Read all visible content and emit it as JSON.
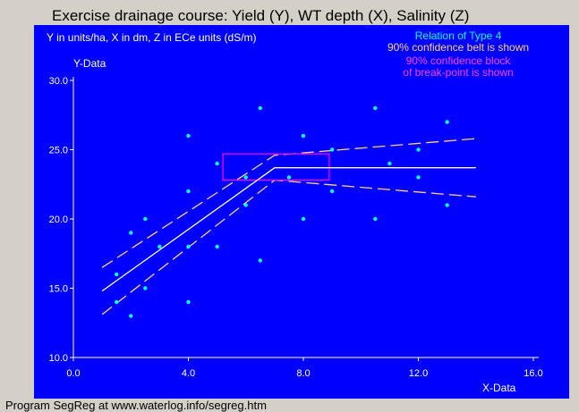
{
  "window": {
    "title": "Exercise drainage course: Yield (Y), WT depth (X), Salinity (Z)",
    "footer": "Program SegReg at www.waterlog.info/segreg.htm"
  },
  "colors": {
    "panel_background": "#0000ff",
    "points": "#00ffff",
    "regression_line": "#ffffff",
    "confidence_belt": "#ffd280",
    "confidence_block": "#ff00ff",
    "axes_text": "#ffffff",
    "relation_text": "#00ffff",
    "belt_text": "#ffd280",
    "block_text": "#ff40ff"
  },
  "chart_data": {
    "type": "scatter",
    "subtitle": "Y in units/ha, X in dm, Z in ECe units (dS/m)",
    "xlabel": "X-Data",
    "ylabel": "Y-Data",
    "xlim": [
      0,
      16
    ],
    "ylim": [
      10,
      30
    ],
    "x_ticks": [
      0,
      4,
      8,
      12,
      16
    ],
    "x_tick_labels": [
      "0.0",
      "4.0",
      "8.0",
      "12.0",
      "16.0"
    ],
    "y_ticks": [
      10,
      15,
      20,
      25,
      30
    ],
    "y_tick_labels": [
      "10.0",
      "15.0",
      "20.0",
      "25.0",
      "30.0"
    ],
    "legend": [
      "Relation of Type 4",
      "90% confidence belt is shown",
      "90% confidence block",
      "of break-point is shown"
    ],
    "points": [
      {
        "x": 1.5,
        "y": 16
      },
      {
        "x": 1.5,
        "y": 14
      },
      {
        "x": 2.0,
        "y": 19
      },
      {
        "x": 2.0,
        "y": 13
      },
      {
        "x": 2.5,
        "y": 20
      },
      {
        "x": 2.5,
        "y": 15
      },
      {
        "x": 3.0,
        "y": 18
      },
      {
        "x": 4.0,
        "y": 26
      },
      {
        "x": 4.0,
        "y": 22
      },
      {
        "x": 4.0,
        "y": 18
      },
      {
        "x": 4.0,
        "y": 14
      },
      {
        "x": 5.0,
        "y": 24
      },
      {
        "x": 5.0,
        "y": 18
      },
      {
        "x": 6.0,
        "y": 23
      },
      {
        "x": 6.0,
        "y": 21
      },
      {
        "x": 6.5,
        "y": 28
      },
      {
        "x": 6.5,
        "y": 17
      },
      {
        "x": 7.5,
        "y": 23
      },
      {
        "x": 8.0,
        "y": 26
      },
      {
        "x": 8.0,
        "y": 20
      },
      {
        "x": 9.0,
        "y": 25
      },
      {
        "x": 9.0,
        "y": 22
      },
      {
        "x": 10.5,
        "y": 28
      },
      {
        "x": 10.5,
        "y": 20
      },
      {
        "x": 11.0,
        "y": 24
      },
      {
        "x": 12.0,
        "y": 25
      },
      {
        "x": 12.0,
        "y": 23
      },
      {
        "x": 13.0,
        "y": 27
      },
      {
        "x": 13.0,
        "y": 21
      }
    ],
    "regression_line": [
      {
        "x": 1.0,
        "y": 14.8
      },
      {
        "x": 7.0,
        "y": 23.7
      },
      {
        "x": 14.0,
        "y": 23.7
      }
    ],
    "confidence_upper": [
      {
        "x": 1.0,
        "y": 16.5
      },
      {
        "x": 7.0,
        "y": 24.6
      },
      {
        "x": 14.0,
        "y": 25.8
      }
    ],
    "confidence_lower": [
      {
        "x": 1.0,
        "y": 13.1
      },
      {
        "x": 7.0,
        "y": 22.8
      },
      {
        "x": 14.0,
        "y": 21.6
      }
    ],
    "breakpoint_block": {
      "x": [
        5.2,
        8.9
      ],
      "y": [
        22.8,
        24.7
      ]
    }
  }
}
